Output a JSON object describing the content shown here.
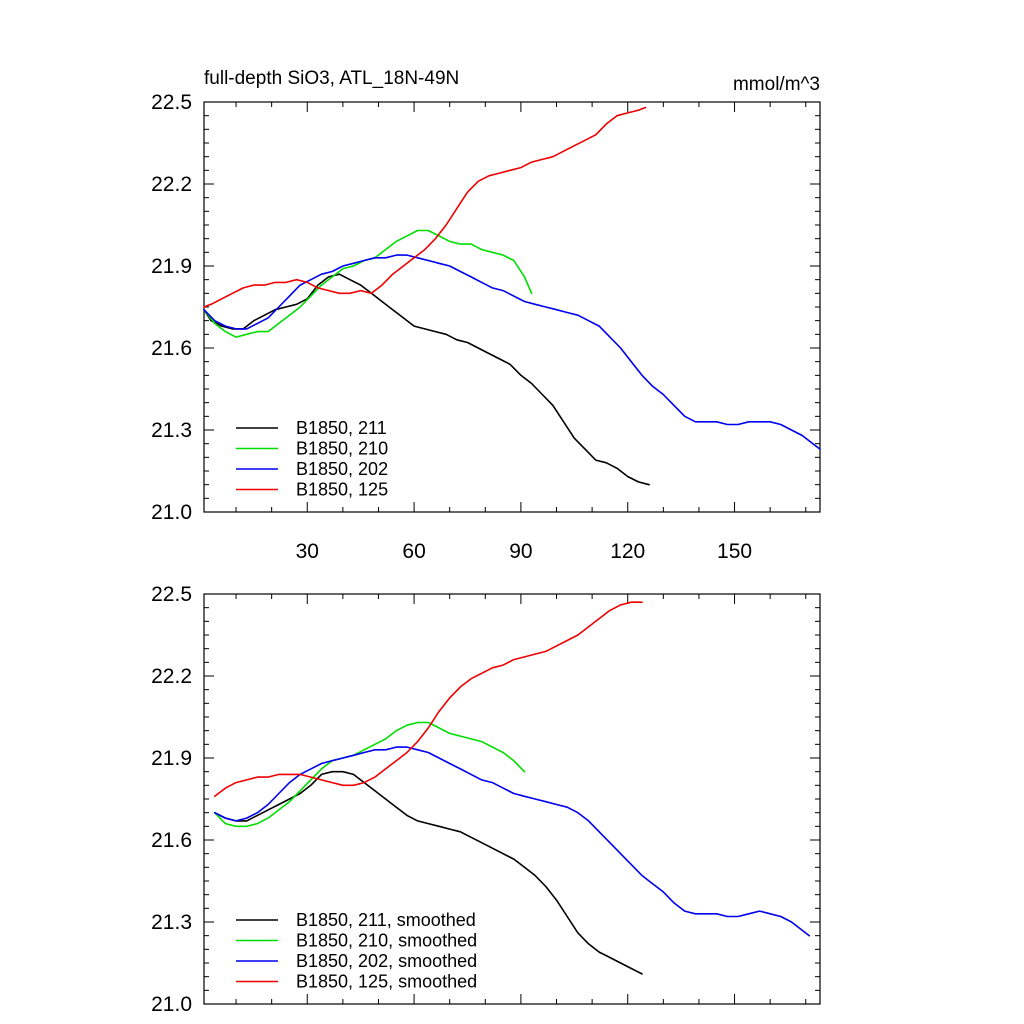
{
  "chart_data": [
    {
      "type": "line",
      "title": "full-depth SiO3, ATL_18N-49N",
      "units": "mmol/m^3",
      "xlim": [
        1,
        174
      ],
      "ylim": [
        21.0,
        22.5
      ],
      "x_ticks": [
        30,
        60,
        90,
        120,
        150
      ],
      "y_ticks": [
        21.0,
        21.3,
        21.6,
        21.9,
        22.2,
        22.5
      ],
      "legend_position": "bottom-left",
      "series": [
        {
          "name": "B1850, 211",
          "color": "#000000",
          "x": [
            1,
            3,
            6,
            9,
            12,
            15,
            18,
            21,
            24,
            27,
            30,
            33,
            36,
            39,
            42,
            45,
            48,
            51,
            54,
            57,
            60,
            63,
            66,
            69,
            72,
            75,
            78,
            81,
            84,
            87,
            90,
            93,
            96,
            99,
            102,
            105,
            108,
            111,
            114,
            117,
            120,
            123,
            126
          ],
          "y": [
            21.74,
            21.7,
            21.68,
            21.67,
            21.67,
            21.7,
            21.72,
            21.74,
            21.75,
            21.76,
            21.78,
            21.83,
            21.86,
            21.87,
            21.85,
            21.83,
            21.8,
            21.77,
            21.74,
            21.71,
            21.68,
            21.67,
            21.66,
            21.65,
            21.63,
            21.62,
            21.6,
            21.58,
            21.56,
            21.54,
            21.5,
            21.47,
            21.43,
            21.39,
            21.33,
            21.27,
            21.23,
            21.19,
            21.18,
            21.16,
            21.13,
            21.11,
            21.1
          ]
        },
        {
          "name": "B1850, 210",
          "color": "#00dd00",
          "x": [
            1,
            4,
            7,
            10,
            13,
            16,
            19,
            22,
            25,
            28,
            31,
            34,
            37,
            40,
            43,
            46,
            49,
            52,
            55,
            58,
            61,
            64,
            67,
            70,
            73,
            76,
            79,
            82,
            85,
            88,
            91,
            93
          ],
          "y": [
            21.74,
            21.69,
            21.66,
            21.64,
            21.65,
            21.66,
            21.66,
            21.69,
            21.72,
            21.75,
            21.79,
            21.83,
            21.86,
            21.89,
            21.9,
            21.92,
            21.93,
            21.96,
            21.99,
            22.01,
            22.03,
            22.03,
            22.01,
            21.99,
            21.98,
            21.98,
            21.96,
            21.95,
            21.94,
            21.92,
            21.86,
            21.8
          ]
        },
        {
          "name": "B1850, 202",
          "color": "#0000ee",
          "x": [
            1,
            4,
            7,
            10,
            13,
            16,
            19,
            22,
            25,
            28,
            31,
            34,
            37,
            40,
            43,
            46,
            49,
            52,
            55,
            58,
            61,
            64,
            67,
            70,
            73,
            76,
            79,
            82,
            85,
            88,
            91,
            94,
            97,
            100,
            103,
            106,
            109,
            112,
            115,
            118,
            121,
            124,
            127,
            130,
            133,
            136,
            139,
            142,
            145,
            148,
            151,
            154,
            157,
            160,
            163,
            166,
            169,
            172,
            174
          ],
          "y": [
            21.74,
            21.7,
            21.68,
            21.67,
            21.67,
            21.69,
            21.71,
            21.75,
            21.79,
            21.83,
            21.85,
            21.87,
            21.88,
            21.9,
            21.91,
            21.92,
            21.93,
            21.93,
            21.94,
            21.94,
            21.93,
            21.92,
            21.91,
            21.9,
            21.88,
            21.86,
            21.84,
            21.82,
            21.81,
            21.79,
            21.77,
            21.76,
            21.75,
            21.74,
            21.73,
            21.72,
            21.7,
            21.68,
            21.64,
            21.6,
            21.55,
            21.5,
            21.46,
            21.43,
            21.39,
            21.35,
            21.33,
            21.33,
            21.33,
            21.32,
            21.32,
            21.33,
            21.33,
            21.33,
            21.32,
            21.3,
            21.28,
            21.25,
            21.23
          ]
        },
        {
          "name": "B1850, 125",
          "color": "#ee0000",
          "x": [
            1,
            3,
            6,
            9,
            12,
            15,
            18,
            21,
            24,
            27,
            30,
            33,
            36,
            39,
            42,
            45,
            48,
            51,
            54,
            57,
            60,
            63,
            66,
            69,
            72,
            75,
            78,
            81,
            84,
            87,
            90,
            93,
            96,
            99,
            102,
            105,
            108,
            111,
            114,
            117,
            120,
            123,
            125
          ],
          "y": [
            21.75,
            21.76,
            21.78,
            21.8,
            21.82,
            21.83,
            21.83,
            21.84,
            21.84,
            21.85,
            21.84,
            21.82,
            21.81,
            21.8,
            21.8,
            21.81,
            21.8,
            21.83,
            21.87,
            21.9,
            21.93,
            21.96,
            22.0,
            22.05,
            22.11,
            22.17,
            22.21,
            22.23,
            22.24,
            22.25,
            22.26,
            22.28,
            22.29,
            22.3,
            22.32,
            22.34,
            22.36,
            22.38,
            22.42,
            22.45,
            22.46,
            22.47,
            22.48
          ]
        }
      ]
    },
    {
      "type": "line",
      "xlim": [
        1,
        174
      ],
      "ylim": [
        21.0,
        22.5
      ],
      "y_ticks": [
        21.0,
        21.3,
        21.6,
        21.9,
        22.2,
        22.5
      ],
      "legend_position": "bottom-left",
      "series": [
        {
          "name": "B1850, 211, smoothed",
          "color": "#000000",
          "x": [
            4,
            7,
            10,
            13,
            16,
            19,
            22,
            25,
            28,
            31,
            34,
            37,
            40,
            43,
            46,
            49,
            52,
            55,
            58,
            61,
            64,
            67,
            70,
            73,
            76,
            79,
            82,
            85,
            88,
            91,
            94,
            97,
            100,
            103,
            106,
            109,
            112,
            115,
            118,
            121,
            124
          ],
          "y": [
            21.7,
            21.68,
            21.67,
            21.67,
            21.69,
            21.71,
            21.73,
            21.75,
            21.77,
            21.8,
            21.84,
            21.85,
            21.85,
            21.84,
            21.81,
            21.78,
            21.75,
            21.72,
            21.69,
            21.67,
            21.66,
            21.65,
            21.64,
            21.63,
            21.61,
            21.59,
            21.57,
            21.55,
            21.53,
            21.5,
            21.47,
            21.43,
            21.38,
            21.32,
            21.26,
            21.22,
            21.19,
            21.17,
            21.15,
            21.13,
            21.11
          ]
        },
        {
          "name": "B1850, 210, smoothed",
          "color": "#00dd00",
          "x": [
            4,
            7,
            10,
            13,
            16,
            19,
            22,
            25,
            28,
            31,
            34,
            37,
            40,
            43,
            46,
            49,
            52,
            55,
            58,
            61,
            64,
            67,
            70,
            73,
            76,
            79,
            82,
            85,
            88,
            91
          ],
          "y": [
            21.7,
            21.66,
            21.65,
            21.65,
            21.66,
            21.68,
            21.71,
            21.74,
            21.78,
            21.82,
            21.86,
            21.89,
            21.9,
            21.91,
            21.93,
            21.95,
            21.97,
            22.0,
            22.02,
            22.03,
            22.03,
            22.01,
            21.99,
            21.98,
            21.97,
            21.96,
            21.94,
            21.92,
            21.89,
            21.85
          ]
        },
        {
          "name": "B1850, 202, smoothed",
          "color": "#0000ee",
          "x": [
            4,
            7,
            10,
            13,
            16,
            19,
            22,
            25,
            28,
            31,
            34,
            37,
            40,
            43,
            46,
            49,
            52,
            55,
            58,
            61,
            64,
            67,
            70,
            73,
            76,
            79,
            82,
            85,
            88,
            91,
            94,
            97,
            100,
            103,
            106,
            109,
            112,
            115,
            118,
            121,
            124,
            127,
            130,
            133,
            136,
            139,
            142,
            145,
            148,
            151,
            154,
            157,
            160,
            163,
            166,
            169,
            171
          ],
          "y": [
            21.7,
            21.68,
            21.67,
            21.68,
            21.7,
            21.73,
            21.77,
            21.81,
            21.84,
            21.86,
            21.88,
            21.89,
            21.9,
            21.91,
            21.92,
            21.93,
            21.93,
            21.94,
            21.94,
            21.93,
            21.92,
            21.9,
            21.88,
            21.86,
            21.84,
            21.82,
            21.81,
            21.79,
            21.77,
            21.76,
            21.75,
            21.74,
            21.73,
            21.72,
            21.7,
            21.67,
            21.63,
            21.59,
            21.55,
            21.51,
            21.47,
            21.44,
            21.41,
            21.37,
            21.34,
            21.33,
            21.33,
            21.33,
            21.32,
            21.32,
            21.33,
            21.34,
            21.33,
            21.32,
            21.3,
            21.27,
            21.25
          ]
        },
        {
          "name": "B1850, 125, smoothed",
          "color": "#ee0000",
          "x": [
            4,
            7,
            10,
            13,
            16,
            19,
            22,
            25,
            28,
            31,
            34,
            37,
            40,
            43,
            46,
            49,
            52,
            55,
            58,
            61,
            64,
            67,
            70,
            73,
            76,
            79,
            82,
            85,
            88,
            91,
            94,
            97,
            100,
            103,
            106,
            109,
            112,
            115,
            118,
            121,
            124
          ],
          "y": [
            21.76,
            21.79,
            21.81,
            21.82,
            21.83,
            21.83,
            21.84,
            21.84,
            21.84,
            21.83,
            21.82,
            21.81,
            21.8,
            21.8,
            21.81,
            21.83,
            21.86,
            21.89,
            21.92,
            21.96,
            22.01,
            22.07,
            22.12,
            22.16,
            22.19,
            22.21,
            22.23,
            22.24,
            22.26,
            22.27,
            22.28,
            22.29,
            22.31,
            22.33,
            22.35,
            22.38,
            22.41,
            22.44,
            22.46,
            22.47,
            22.47
          ]
        }
      ]
    }
  ]
}
